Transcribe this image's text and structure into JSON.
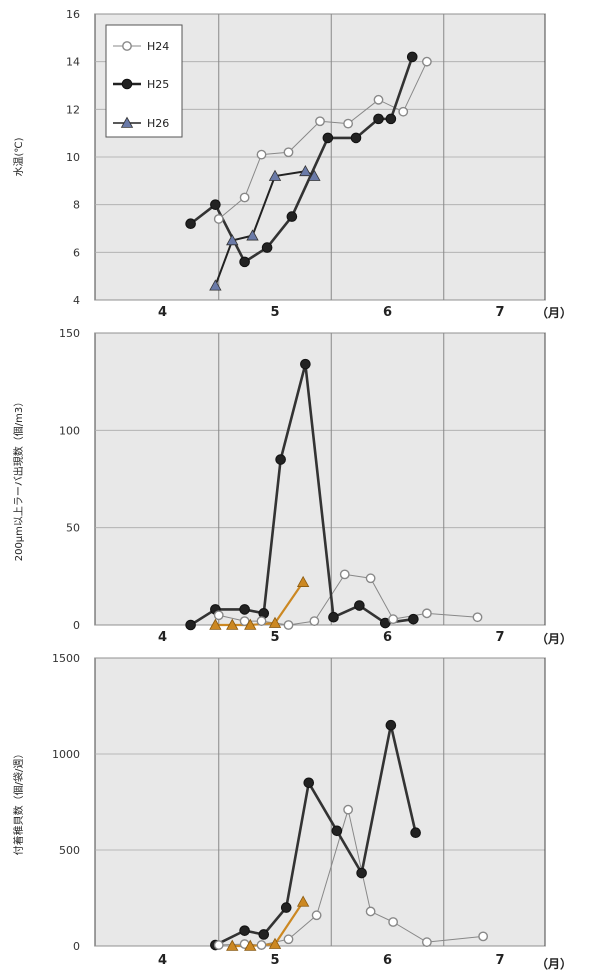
{
  "colors": {
    "H24": "#888888",
    "H25": "#333333",
    "H26": "#555577",
    "H26_lower_panels": "#cc8822",
    "plot_bg": "#e8e8e8",
    "grid": "#aaaaaa"
  },
  "chart_data": [
    {
      "type": "line",
      "ylabel": "水温(℃)",
      "x_unit": "（月）",
      "x_ticks": [
        4,
        5,
        6,
        7
      ],
      "xlim": [
        3.4,
        7.4
      ],
      "ylim": [
        4,
        16
      ],
      "y_ticks": [
        4,
        6,
        8,
        10,
        12,
        14,
        16
      ],
      "legend": {
        "position": "top-left"
      },
      "series": [
        {
          "name": "H24",
          "marker": "open-circle",
          "x": [
            4.5,
            4.73,
            4.88,
            5.12,
            5.4,
            5.65,
            5.92,
            6.14,
            6.35
          ],
          "y": [
            7.4,
            8.3,
            10.1,
            10.2,
            11.5,
            11.4,
            12.4,
            11.9,
            14.0
          ]
        },
        {
          "name": "H25",
          "marker": "filled-circle",
          "x": [
            4.25,
            4.47,
            4.73,
            4.93,
            5.15,
            5.47,
            5.72,
            5.92,
            6.03,
            6.22
          ],
          "y": [
            7.2,
            8.0,
            5.6,
            6.2,
            7.5,
            10.8,
            10.8,
            11.6,
            11.6,
            14.2
          ]
        },
        {
          "name": "H26",
          "marker": "triangle",
          "x": [
            4.47,
            4.62,
            4.8,
            5.0,
            5.27,
            5.35
          ],
          "y": [
            4.6,
            6.5,
            6.7,
            9.2,
            9.4,
            9.2
          ]
        }
      ]
    },
    {
      "type": "line",
      "ylabel": "200μm以上ラーバ出現数（個/m3）",
      "x_unit": "（月）",
      "x_ticks": [
        4,
        5,
        6,
        7
      ],
      "xlim": [
        3.4,
        7.4
      ],
      "ylim": [
        0,
        150
      ],
      "y_ticks": [
        0,
        50,
        100,
        150
      ],
      "series": [
        {
          "name": "H24",
          "marker": "open-circle",
          "x": [
            4.5,
            4.73,
            4.88,
            5.12,
            5.35,
            5.62,
            5.85,
            6.05,
            6.35,
            6.8
          ],
          "y": [
            5,
            2,
            2,
            0,
            2,
            26,
            24,
            3,
            6,
            4
          ]
        },
        {
          "name": "H25",
          "marker": "filled-circle",
          "x": [
            4.25,
            4.47,
            4.73,
            4.9,
            5.05,
            5.27,
            5.52,
            5.75,
            5.98,
            6.23
          ],
          "y": [
            0,
            8,
            8,
            6,
            85,
            134,
            4,
            10,
            1,
            3
          ]
        },
        {
          "name": "H26",
          "marker": "triangle",
          "x": [
            4.47,
            4.62,
            4.78,
            5.0,
            5.25
          ],
          "y": [
            0,
            0,
            0,
            1,
            22
          ]
        }
      ]
    },
    {
      "type": "line",
      "ylabel": "付着稚貝数（個/袋/週）",
      "x_unit": "（月）",
      "x_ticks": [
        4,
        5,
        6,
        7
      ],
      "xlim": [
        3.4,
        7.4
      ],
      "ylim": [
        0,
        1500
      ],
      "y_ticks": [
        0,
        500,
        1000,
        1500
      ],
      "series": [
        {
          "name": "H24",
          "marker": "open-circle",
          "x": [
            4.5,
            4.73,
            4.88,
            5.12,
            5.37,
            5.65,
            5.85,
            6.05,
            6.35,
            6.85
          ],
          "y": [
            5,
            10,
            5,
            35,
            160,
            710,
            180,
            125,
            20,
            50
          ]
        },
        {
          "name": "H25",
          "marker": "filled-circle",
          "x": [
            4.47,
            4.73,
            4.9,
            5.1,
            5.3,
            5.55,
            5.77,
            6.03,
            6.25
          ],
          "y": [
            5,
            80,
            60,
            200,
            850,
            600,
            380,
            1150,
            590
          ]
        },
        {
          "name": "H26",
          "marker": "triangle",
          "x": [
            4.62,
            4.78,
            5.0,
            5.25
          ],
          "y": [
            0,
            0,
            10,
            230
          ]
        }
      ]
    }
  ]
}
